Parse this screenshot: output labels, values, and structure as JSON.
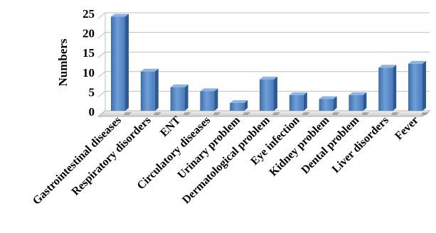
{
  "chart_data": {
    "type": "bar",
    "title": "",
    "xlabel": "",
    "ylabel": "Numbers",
    "ylim": [
      0,
      25
    ],
    "yticks": [
      0,
      5,
      10,
      15,
      20,
      25
    ],
    "grid": true,
    "style": "3d",
    "bar_color": "#4f81bd",
    "categories": [
      "Gastrointestinal diseases",
      "Respiratory disorders",
      "ENT",
      "Circulatory diseases",
      "Urinary problem",
      "Dermatological problem",
      "Eye infection",
      "Kidney problem",
      "Dental problem",
      "Liver disorders",
      "Fever"
    ],
    "values": [
      24,
      10,
      6,
      5,
      2,
      8,
      4,
      3,
      4,
      11,
      12
    ]
  }
}
